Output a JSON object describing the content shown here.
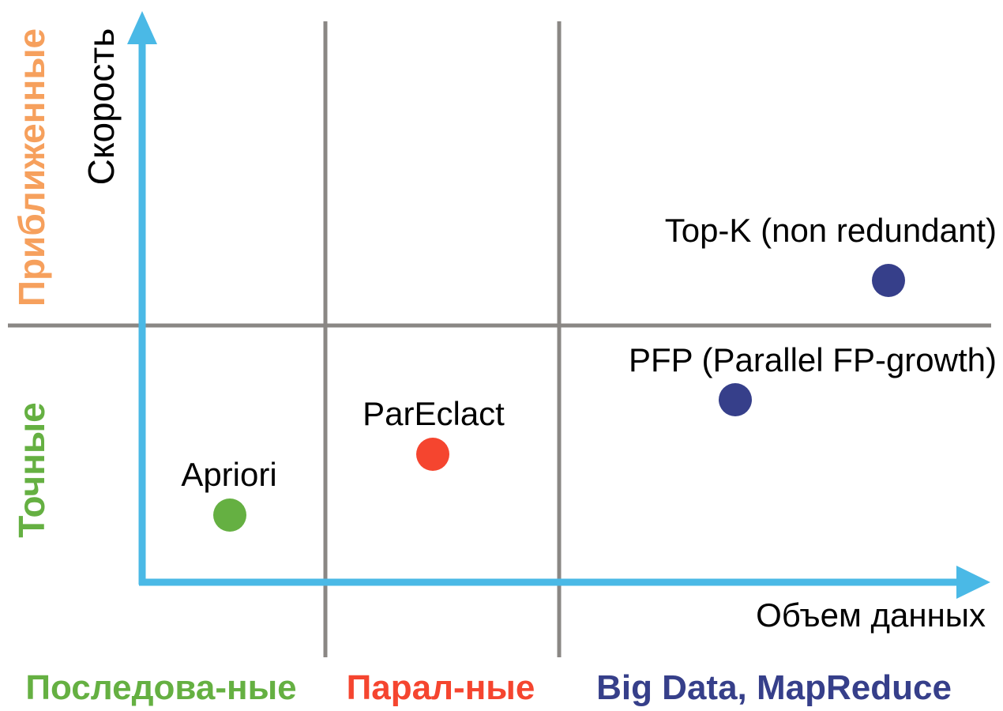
{
  "colors": {
    "axis": "#4ab9e6",
    "grid": "#8a8784",
    "sequential": "#65b042",
    "parallel": "#f5452f",
    "bigdata": "#363f8a",
    "approximate": "#f6a05d",
    "exact": "#65b042",
    "text": "#000000"
  },
  "axes": {
    "y_label": "Скорость",
    "x_label": "Объем данных"
  },
  "row_labels": {
    "top": "Приближенные",
    "bottom": "Точные"
  },
  "column_labels": {
    "sequential": "Последова-ные",
    "parallel": "Парал-ные",
    "bigdata": "Big Data, MapReduce"
  },
  "points": [
    {
      "label": "Apriori",
      "category": "sequential"
    },
    {
      "label": "ParEclact",
      "category": "parallel"
    },
    {
      "label": "PFP (Parallel FP-growth)",
      "category": "bigdata"
    },
    {
      "label": "Top-K (non redundant)",
      "category": "bigdata"
    }
  ]
}
